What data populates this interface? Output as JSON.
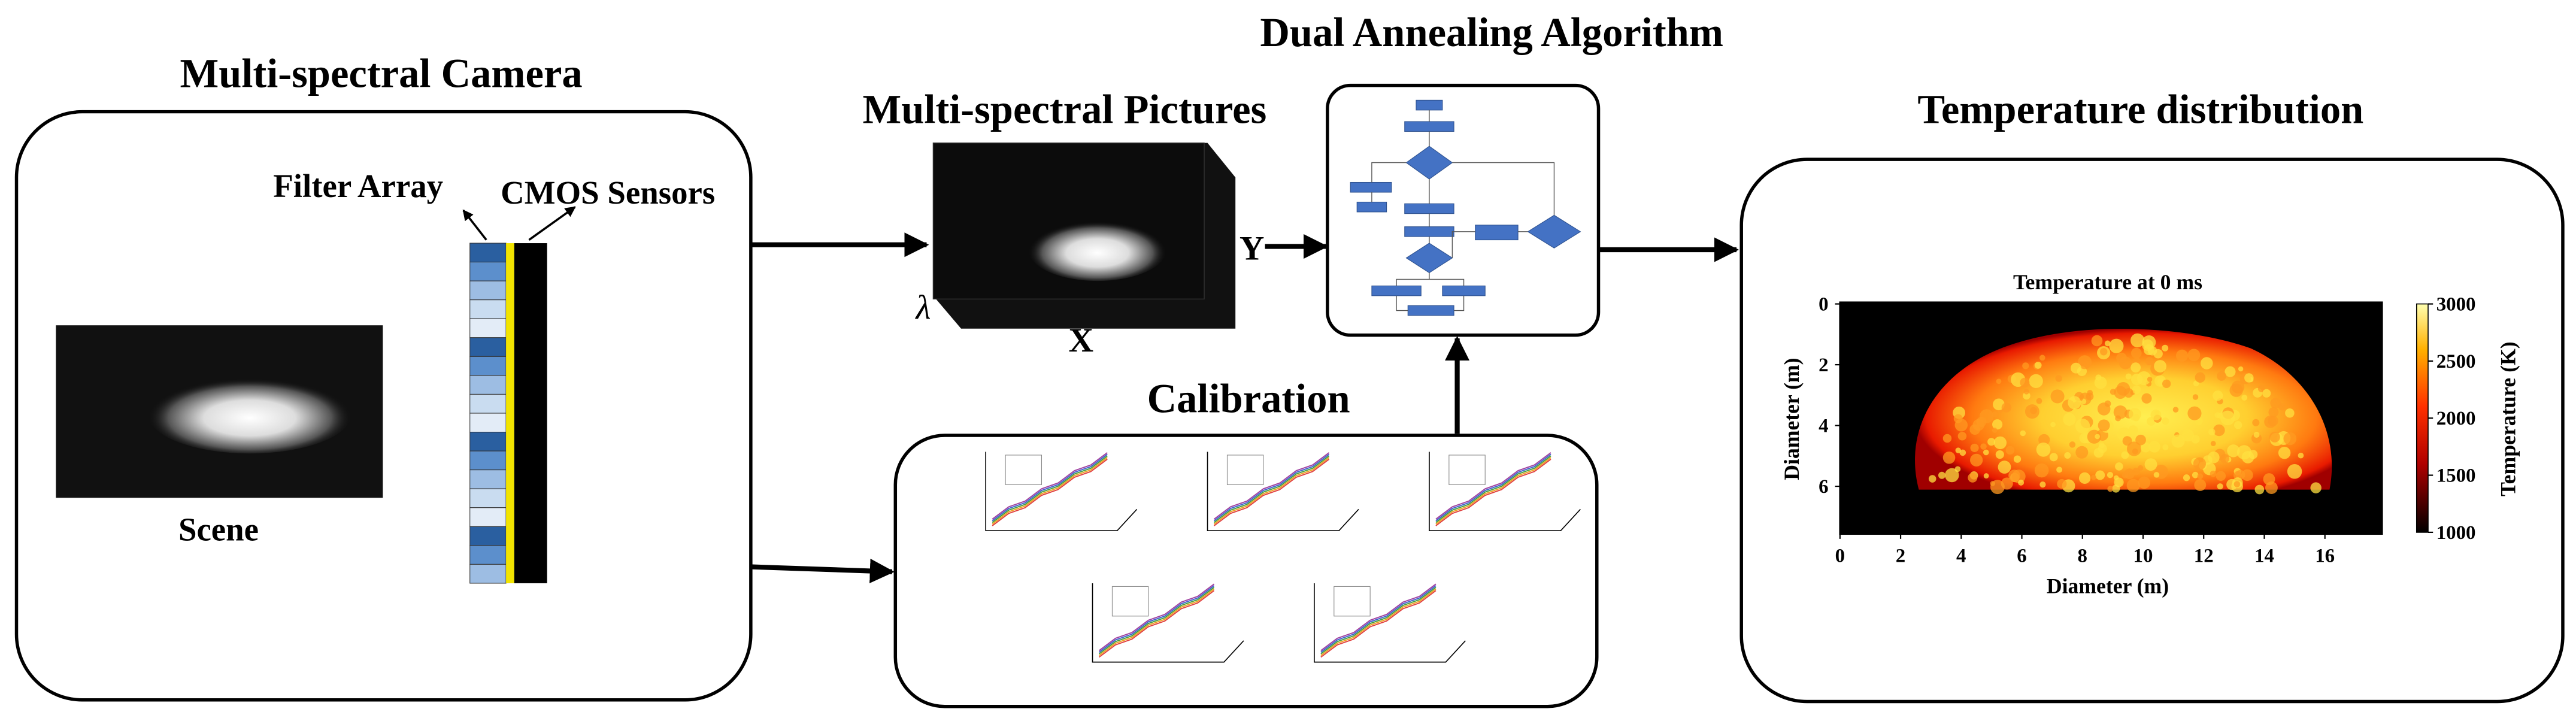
{
  "camera": {
    "title": "Multi-spectral Camera",
    "scene_label": "Scene",
    "filter_label": "Filter Array",
    "sensor_label": "CMOS Sensors"
  },
  "pictures": {
    "title": "Multi-spectral Pictures",
    "axis_y": "Y",
    "axis_x": "X",
    "axis_lambda": "λ"
  },
  "algorithm": {
    "title": "Dual Annealing  Algorithm"
  },
  "calibration": {
    "title": "Calibration"
  },
  "temperature": {
    "title": "Temperature distribution",
    "plot_title": "Temperature at 0 ms",
    "x_label": "Diameter (m)",
    "y_label": "Diameter (m)",
    "colorbar_label": "Temperature (K)",
    "x_ticks": [
      "0",
      "2",
      "4",
      "6",
      "8",
      "10",
      "12",
      "14",
      "16"
    ],
    "y_ticks": [
      "0",
      "2",
      "4",
      "6"
    ],
    "colorbar_ticks": [
      "3000",
      "2500",
      "2000",
      "1500",
      "1000"
    ]
  }
}
